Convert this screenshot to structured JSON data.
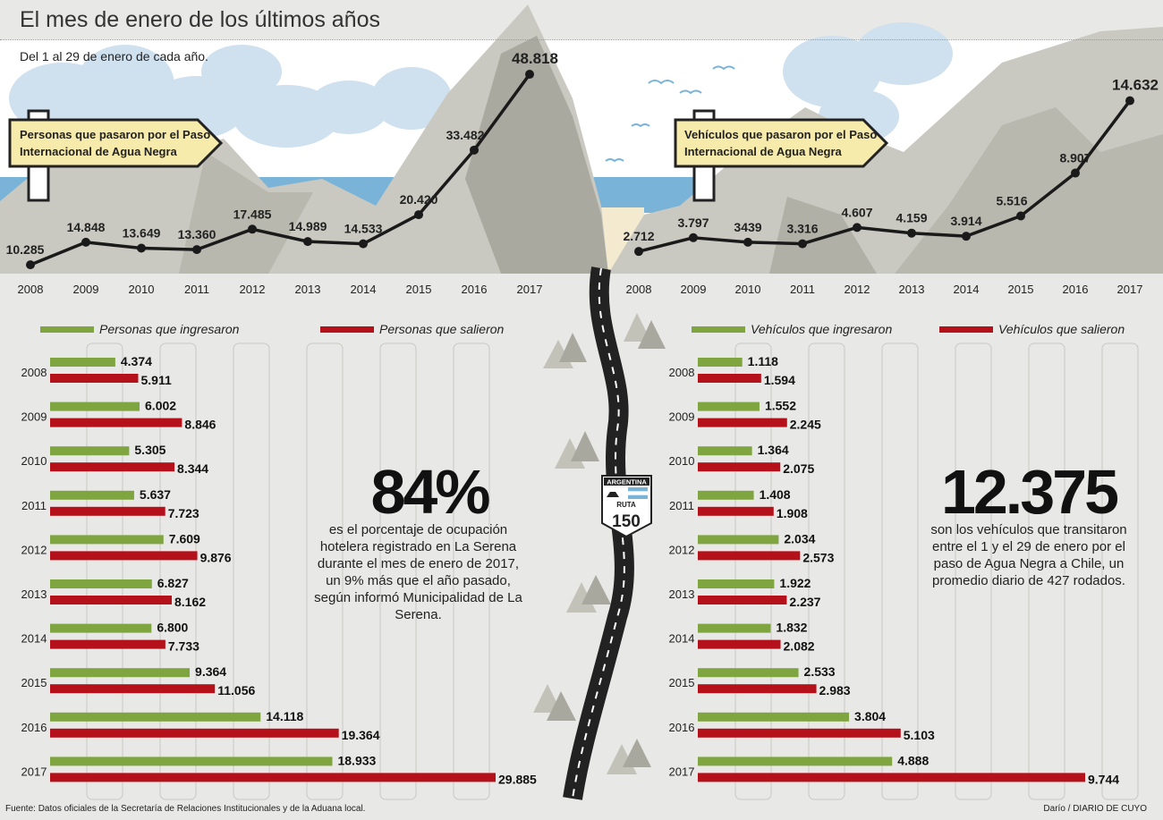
{
  "title": "El mes de enero de los últimos años",
  "subtitle": "Del 1 al 29 de enero de cada año.",
  "footer": {
    "source": "Fuente: Datos oficiales de la Secretaría de Relaciones Institucionales y de la Aduana local.",
    "credit": "Darío / DIARIO DE CUYO"
  },
  "colors": {
    "green": "#7fa540",
    "red": "#b5111a",
    "line": "#1a1a1a",
    "sign": "#f7ebab",
    "mountain": "#c9c9c1",
    "sky": "#cfe0ef",
    "sea": "#7ab3d8"
  },
  "route_shield": {
    "country": "ARGENTINA",
    "label": "RUTA",
    "number": "150"
  },
  "stat_left": {
    "value": "84%",
    "text": "es el porcentaje de ocupación hotelera registrado en La Serena durante el mes de enero de 2017, un 9% más que el año pasado, según informó Municipalidad de La Serena."
  },
  "stat_right": {
    "value": "12.375",
    "text": "son los vehículos que transitaron entre el 1 y el 29 de enero por el paso de Agua Negra a Chile, un promedio diario de 427 rodados."
  },
  "chart_data": [
    {
      "type": "line",
      "title": "Personas que pasaron por el Paso Internacional de Agua Negra",
      "x": [
        "2008",
        "2009",
        "2010",
        "2011",
        "2012",
        "2013",
        "2014",
        "2015",
        "2016",
        "2017"
      ],
      "values": [
        10285,
        14848,
        13649,
        13360,
        17485,
        14989,
        14533,
        20420,
        33482,
        48818
      ],
      "labels": [
        "10.285",
        "14.848",
        "13.649",
        "13.360",
        "17.485",
        "14.989",
        "14.533",
        "20.420",
        "33.482",
        "48.818"
      ]
    },
    {
      "type": "line",
      "title": "Vehículos que pasaron por el Paso Internacional de Agua Negra",
      "x": [
        "2008",
        "2009",
        "2010",
        "2011",
        "2012",
        "2013",
        "2014",
        "2015",
        "2016",
        "2017"
      ],
      "values": [
        2712,
        3797,
        3439,
        3316,
        4607,
        4159,
        3914,
        5516,
        8907,
        14632
      ],
      "labels": [
        "2.712",
        "3.797",
        "3439",
        "3.316",
        "4.607",
        "4.159",
        "3.914",
        "5.516",
        "8.907",
        "14.632"
      ]
    },
    {
      "type": "bar",
      "orientation": "horizontal",
      "categories": [
        "2008",
        "2009",
        "2010",
        "2011",
        "2012",
        "2013",
        "2014",
        "2015",
        "2016",
        "2017"
      ],
      "xlim": [
        0,
        32000
      ],
      "series": [
        {
          "name": "Personas que ingresaron",
          "values": [
            4374,
            6002,
            5305,
            5637,
            7609,
            6827,
            6800,
            9364,
            14118,
            18933
          ],
          "labels": [
            "4.374",
            "6.002",
            "5.305",
            "5.637",
            "7.609",
            "6.827",
            "6.800",
            "9.364",
            "14.118",
            "18.933"
          ]
        },
        {
          "name": "Personas que salieron",
          "values": [
            5911,
            8846,
            8344,
            7723,
            9876,
            8162,
            7733,
            11056,
            19364,
            29885
          ],
          "labels": [
            "5.911",
            "8.846",
            "8.344",
            "7.723",
            "9.876",
            "8.162",
            "7.733",
            "11.056",
            "19.364",
            "29.885"
          ]
        }
      ]
    },
    {
      "type": "bar",
      "orientation": "horizontal",
      "categories": [
        "2008",
        "2009",
        "2010",
        "2011",
        "2012",
        "2013",
        "2014",
        "2015",
        "2016",
        "2017"
      ],
      "xlim": [
        0,
        10250
      ],
      "series": [
        {
          "name": "Vehículos que ingresaron",
          "values": [
            1118,
            1552,
            1364,
            1408,
            2034,
            1922,
            1832,
            2533,
            3804,
            4888
          ],
          "labels": [
            "1.118",
            "1.552",
            "1.364",
            "1.408",
            "2.034",
            "1.922",
            "1.832",
            "2.533",
            "3.804",
            "4.888"
          ]
        },
        {
          "name": "Vehículos que salieron",
          "values": [
            1594,
            2245,
            2075,
            1908,
            2573,
            2237,
            2082,
            2983,
            5103,
            9744
          ],
          "labels": [
            "1.594",
            "2.245",
            "2.075",
            "1.908",
            "2.573",
            "2.237",
            "2.082",
            "2.983",
            "5.103",
            "9.744"
          ]
        }
      ]
    }
  ]
}
